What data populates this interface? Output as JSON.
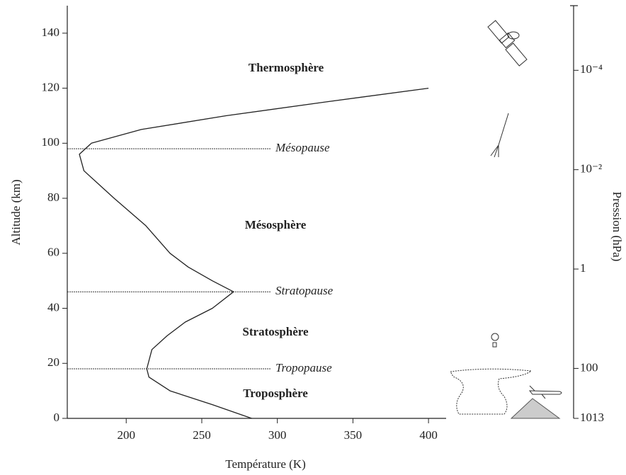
{
  "chart_data": {
    "type": "line",
    "x_label": "Température (K)",
    "y_label": "Altitude (km)",
    "y2_label": "Pression (hPa)",
    "x": [
      283,
      257,
      229,
      215,
      213.6,
      217,
      227,
      239,
      257,
      271,
      257,
      241,
      229,
      213,
      192,
      182,
      172,
      169,
      177,
      210,
      266,
      332,
      400
    ],
    "values": [
      0,
      5,
      10,
      15,
      18,
      25,
      30,
      35,
      40,
      46,
      50,
      55,
      60,
      70,
      80,
      85,
      90,
      96,
      100,
      105,
      110,
      115,
      120
    ],
    "color": "#222222",
    "xlim": [
      161,
      496
    ],
    "xticks": [
      200,
      250,
      300,
      350,
      400
    ],
    "ylim": [
      0,
      150
    ],
    "yticks": [
      0,
      20,
      40,
      60,
      80,
      100,
      120,
      140
    ],
    "y2lim": [
      1013,
      5e-06
    ],
    "y2_log": true,
    "y2ticks": [
      1013,
      100,
      1,
      {
        "value": 0.01,
        "label": "10⁻²"
      },
      {
        "value": 0.0001,
        "label": "10⁻⁴"
      }
    ],
    "annotations": [
      {
        "label": "Tropopause",
        "y": 18
      },
      {
        "label": "Stratopause",
        "y": 46
      },
      {
        "label": "Mésopause",
        "y": 98
      }
    ],
    "region_labels": [
      "Thermosphère",
      "Mésosphère",
      "Stratosphère",
      "Troposphère"
    ]
  }
}
